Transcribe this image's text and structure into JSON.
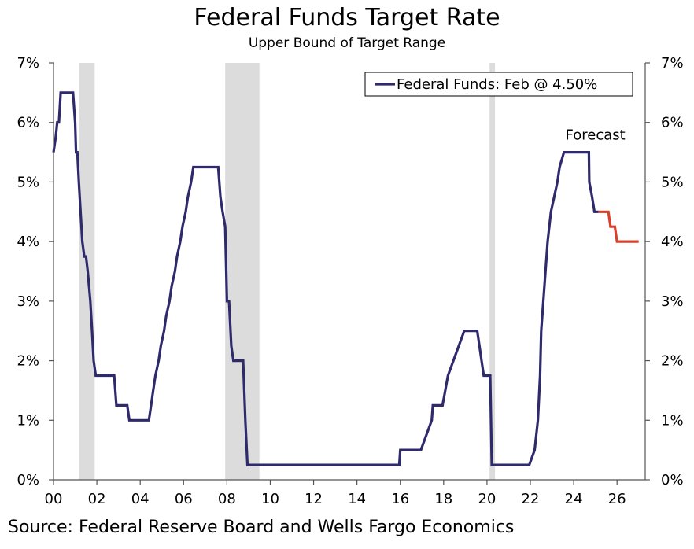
{
  "chart_data": {
    "type": "line",
    "title": "Federal Funds Target Rate",
    "subtitle": "Upper Bound of Target Range",
    "source": "Source: Federal Reserve Board and Wells Fargo Economics",
    "xlim": [
      2000,
      2027.3
    ],
    "ylim": [
      0,
      7
    ],
    "x_tick_values": [
      2000,
      2002,
      2004,
      2006,
      2008,
      2010,
      2012,
      2014,
      2016,
      2018,
      2020,
      2022,
      2024,
      2026
    ],
    "x_tick_labels": [
      "00",
      "02",
      "04",
      "06",
      "08",
      "10",
      "12",
      "14",
      "16",
      "18",
      "20",
      "22",
      "24",
      "26"
    ],
    "y_tick_values": [
      0,
      1,
      2,
      3,
      4,
      5,
      6,
      7
    ],
    "y_tick_labels": [
      "0%",
      "1%",
      "2%",
      "3%",
      "4%",
      "5%",
      "6%",
      "7%"
    ],
    "grid": false,
    "legend": {
      "position": "top-right",
      "entries": [
        "Federal Funds: Feb @ 4.50%"
      ]
    },
    "annotations": [
      {
        "text": "Forecast",
        "x": 2025.0,
        "y": 5.75
      }
    ],
    "recessions": [
      [
        2001.17,
        2001.9
      ],
      [
        2007.92,
        2009.5
      ],
      [
        2020.12,
        2020.37
      ]
    ],
    "series": [
      {
        "name": "Federal Funds: Feb @ 4.50%",
        "color": "#2e2a6b",
        "points": [
          [
            2000.0,
            5.5
          ],
          [
            2000.1,
            5.75
          ],
          [
            2000.17,
            6.0
          ],
          [
            2000.25,
            6.0
          ],
          [
            2000.33,
            6.5
          ],
          [
            2000.9,
            6.5
          ],
          [
            2001.0,
            6.0
          ],
          [
            2001.04,
            5.5
          ],
          [
            2001.1,
            5.5
          ],
          [
            2001.17,
            5.0
          ],
          [
            2001.25,
            4.5
          ],
          [
            2001.33,
            4.0
          ],
          [
            2001.42,
            3.75
          ],
          [
            2001.5,
            3.75
          ],
          [
            2001.58,
            3.5
          ],
          [
            2001.7,
            3.0
          ],
          [
            2001.78,
            2.5
          ],
          [
            2001.85,
            2.0
          ],
          [
            2001.95,
            1.75
          ],
          [
            2002.8,
            1.75
          ],
          [
            2002.9,
            1.25
          ],
          [
            2003.4,
            1.25
          ],
          [
            2003.5,
            1.0
          ],
          [
            2004.4,
            1.0
          ],
          [
            2004.5,
            1.25
          ],
          [
            2004.6,
            1.5
          ],
          [
            2004.7,
            1.75
          ],
          [
            2004.85,
            2.0
          ],
          [
            2004.95,
            2.25
          ],
          [
            2005.1,
            2.5
          ],
          [
            2005.2,
            2.75
          ],
          [
            2005.35,
            3.0
          ],
          [
            2005.45,
            3.25
          ],
          [
            2005.6,
            3.5
          ],
          [
            2005.7,
            3.75
          ],
          [
            2005.85,
            4.0
          ],
          [
            2005.95,
            4.25
          ],
          [
            2006.1,
            4.5
          ],
          [
            2006.2,
            4.75
          ],
          [
            2006.35,
            5.0
          ],
          [
            2006.45,
            5.25
          ],
          [
            2007.6,
            5.25
          ],
          [
            2007.7,
            4.75
          ],
          [
            2007.8,
            4.5
          ],
          [
            2007.92,
            4.25
          ],
          [
            2008.0,
            3.0
          ],
          [
            2008.1,
            3.0
          ],
          [
            2008.2,
            2.25
          ],
          [
            2008.3,
            2.0
          ],
          [
            2008.75,
            2.0
          ],
          [
            2008.8,
            1.5
          ],
          [
            2008.85,
            1.0
          ],
          [
            2008.95,
            0.25
          ],
          [
            2015.95,
            0.25
          ],
          [
            2016.0,
            0.5
          ],
          [
            2016.95,
            0.5
          ],
          [
            2017.2,
            0.75
          ],
          [
            2017.45,
            1.0
          ],
          [
            2017.5,
            1.25
          ],
          [
            2017.95,
            1.25
          ],
          [
            2018.2,
            1.75
          ],
          [
            2018.45,
            2.0
          ],
          [
            2018.7,
            2.25
          ],
          [
            2018.95,
            2.5
          ],
          [
            2019.55,
            2.5
          ],
          [
            2019.65,
            2.25
          ],
          [
            2019.75,
            2.0
          ],
          [
            2019.85,
            1.75
          ],
          [
            2020.15,
            1.75
          ],
          [
            2020.22,
            0.25
          ],
          [
            2021.95,
            0.25
          ],
          [
            2022.2,
            0.5
          ],
          [
            2022.35,
            1.0
          ],
          [
            2022.45,
            1.75
          ],
          [
            2022.5,
            2.5
          ],
          [
            2022.65,
            3.25
          ],
          [
            2022.8,
            4.0
          ],
          [
            2022.95,
            4.5
          ],
          [
            2023.1,
            4.75
          ],
          [
            2023.25,
            5.0
          ],
          [
            2023.35,
            5.25
          ],
          [
            2023.55,
            5.5
          ],
          [
            2024.7,
            5.5
          ],
          [
            2024.72,
            5.0
          ],
          [
            2024.85,
            4.75
          ],
          [
            2024.96,
            4.5
          ],
          [
            2025.15,
            4.5
          ]
        ]
      },
      {
        "name": "",
        "color": "#d9402c",
        "points": [
          [
            2025.15,
            4.5
          ],
          [
            2025.6,
            4.5
          ],
          [
            2025.7,
            4.25
          ],
          [
            2025.9,
            4.25
          ],
          [
            2026.0,
            4.0
          ],
          [
            2027.0,
            4.0
          ]
        ]
      }
    ]
  }
}
